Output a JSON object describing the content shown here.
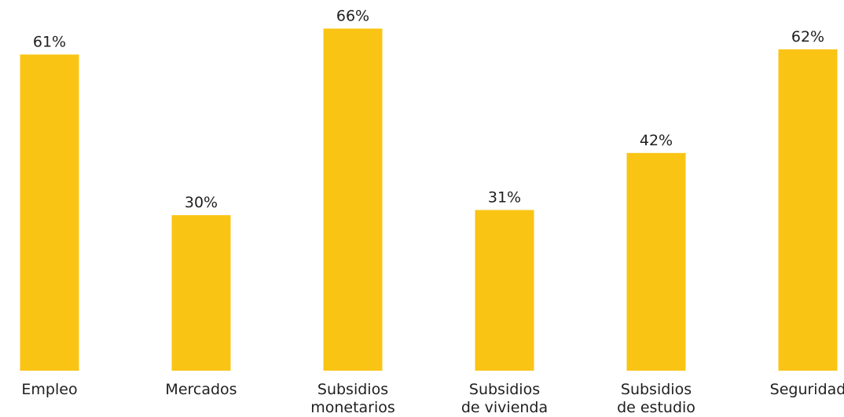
{
  "chart_data": {
    "type": "bar",
    "categories": [
      [
        "Empleo"
      ],
      [
        "Mercados"
      ],
      [
        "Subsidios",
        "monetarios"
      ],
      [
        "Subsidios",
        "de vivienda"
      ],
      [
        "Subsidios",
        "de estudio"
      ],
      [
        "Seguridad"
      ]
    ],
    "values": [
      61,
      30,
      66,
      31,
      42,
      62
    ],
    "value_labels": [
      "61%",
      "30%",
      "66%",
      "31%",
      "42%",
      "62%"
    ],
    "unit": "%",
    "bar_color": "#FAC415",
    "grid": false,
    "legend": "none"
  }
}
